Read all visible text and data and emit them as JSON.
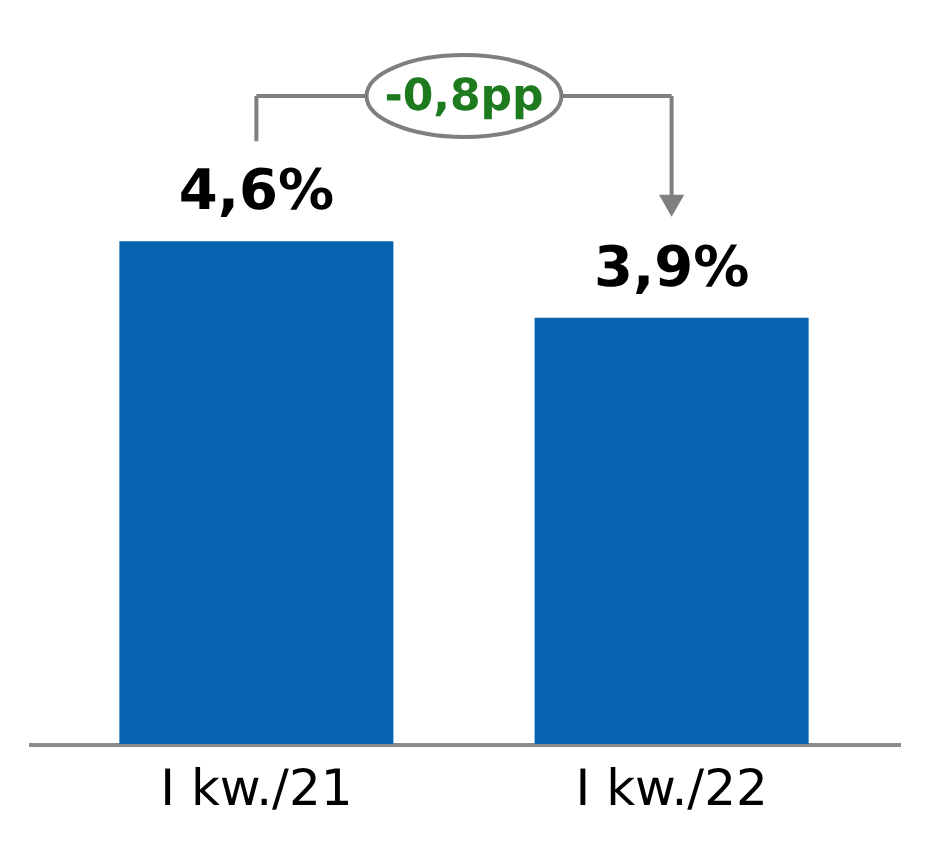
{
  "chart_data": {
    "type": "bar",
    "categories": [
      "I kw./21",
      "I kw./22"
    ],
    "values": [
      4.6,
      3.9
    ],
    "value_labels": [
      "4,6%",
      "3,9%"
    ],
    "color": "#0563b0",
    "annotations": [
      "-0,8pp"
    ],
    "grid": false
  }
}
